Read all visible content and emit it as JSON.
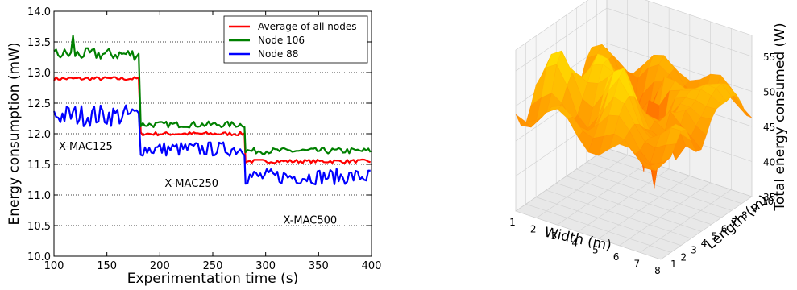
{
  "chart_data": [
    {
      "type": "line",
      "xlabel": "Experimentation time (s)",
      "ylabel": "Energy consumption (mW)",
      "xlim": [
        100,
        400
      ],
      "ylim": [
        10.0,
        14.0
      ],
      "xticks": [
        "100",
        "150",
        "200",
        "250",
        "300",
        "350",
        "400"
      ],
      "yticks": [
        "10.0",
        "10.5",
        "11.0",
        "11.5",
        "12.0",
        "12.5",
        "13.0",
        "13.5",
        "14.0"
      ],
      "grid": "horizontal dotted",
      "legend_position": "top-right",
      "annotations": [
        {
          "text": "X-MAC125",
          "x": 130,
          "y": 11.8
        },
        {
          "text": "X-MAC250",
          "x": 230,
          "y": 11.2
        },
        {
          "text": "X-MAC500",
          "x": 342,
          "y": 10.6
        }
      ],
      "series": [
        {
          "name": "Average of all nodes",
          "color": "#ff0000",
          "phases": [
            {
              "x_start": 100,
              "x_end": 181,
              "level": 12.9,
              "noise": 0.03
            },
            {
              "x_start": 182,
              "x_end": 280,
              "level": 12.0,
              "noise": 0.03
            },
            {
              "x_start": 281,
              "x_end": 400,
              "level": 11.55,
              "noise": 0.03
            }
          ]
        },
        {
          "name": "Node 106",
          "color": "#008000",
          "phases": [
            {
              "x_start": 100,
              "x_end": 181,
              "level": 13.3,
              "noise": 0.1,
              "peak": {
                "x": 118,
                "y": 13.6
              }
            },
            {
              "x_start": 182,
              "x_end": 280,
              "level": 12.15,
              "noise": 0.05
            },
            {
              "x_start": 281,
              "x_end": 400,
              "level": 11.72,
              "noise": 0.05
            }
          ]
        },
        {
          "name": "Node 88",
          "color": "#0000ff",
          "phases": [
            {
              "x_start": 100,
              "x_end": 181,
              "level": 12.3,
              "noise": 0.18
            },
            {
              "x_start": 182,
              "x_end": 280,
              "level": 11.75,
              "noise": 0.12
            },
            {
              "x_start": 281,
              "x_end": 400,
              "level": 11.3,
              "noise": 0.13
            }
          ]
        }
      ]
    },
    {
      "type": "surface",
      "xlabel": "Width (m)",
      "ylabel": "Length (m)",
      "zlabel": "Total energy consumed (W)",
      "xlim": [
        1,
        8
      ],
      "ylim": [
        1,
        10
      ],
      "zlim": [
        35,
        58
      ],
      "xticks": [
        "1",
        "2",
        "3",
        "4",
        "5",
        "6",
        "7",
        "8"
      ],
      "yticks": [
        "1",
        "2",
        "3",
        "4",
        "5",
        "6",
        "7",
        "8",
        "9",
        "10"
      ],
      "zticks": [
        "35",
        "40",
        "45",
        "50",
        "55"
      ],
      "colormap": "autumn",
      "z_base": 49,
      "dips": [
        {
          "x": 4.0,
          "y": 7.5,
          "z": 38
        },
        {
          "x": 5.0,
          "y": 6.5,
          "z": 37
        },
        {
          "x": 6.0,
          "y": 5.5,
          "z": 41
        },
        {
          "x": 3.0,
          "y": 8.5,
          "z": 45
        },
        {
          "x": 7.0,
          "y": 4.5,
          "z": 44
        }
      ],
      "peaks": [
        {
          "x": 3.0,
          "y": 5.0,
          "z": 56
        },
        {
          "x": 5.0,
          "y": 3.5,
          "z": 57
        },
        {
          "x": 7.0,
          "y": 7.0,
          "z": 55
        },
        {
          "x": 2.0,
          "y": 3.5,
          "z": 54
        }
      ]
    }
  ]
}
